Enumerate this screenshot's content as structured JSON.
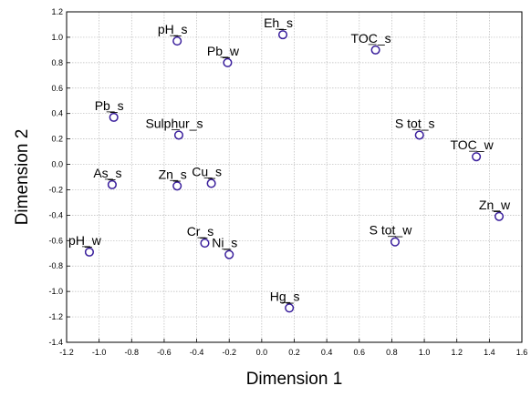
{
  "chart_data": {
    "type": "scatter",
    "xlabel": "Dimension 1",
    "ylabel": "Dimension 2",
    "xlim": [
      -1.2,
      1.6
    ],
    "ylim": [
      -1.4,
      1.2
    ],
    "xticks": [
      "-1.2",
      "-1.0",
      "-0.8",
      "-0.6",
      "-0.4",
      "-0.2",
      "0.0",
      "0.2",
      "0.4",
      "0.6",
      "0.8",
      "1.0",
      "1.2",
      "1.4",
      "1.6"
    ],
    "yticks": [
      "-1.4",
      "-1.2",
      "-1.0",
      "-0.8",
      "-0.6",
      "-0.4",
      "-0.2",
      "0.0",
      "0.2",
      "0.4",
      "0.6",
      "0.8",
      "1.0",
      "1.2"
    ],
    "grid": true,
    "marker_color": "#3a1f9c",
    "points": [
      {
        "label": "pH_s",
        "x": -0.52,
        "y": 0.97
      },
      {
        "label": "Eh_s",
        "x": 0.13,
        "y": 1.02
      },
      {
        "label": "TOC_s",
        "x": 0.7,
        "y": 0.9
      },
      {
        "label": "Pb_w",
        "x": -0.21,
        "y": 0.8
      },
      {
        "label": "Pb_s",
        "x": -0.91,
        "y": 0.37
      },
      {
        "label": "Sulphur_s",
        "x": -0.51,
        "y": 0.23
      },
      {
        "label": "S tot_s",
        "x": 0.97,
        "y": 0.23
      },
      {
        "label": "TOC_w",
        "x": 1.32,
        "y": 0.06
      },
      {
        "label": "As_s",
        "x": -0.92,
        "y": -0.16
      },
      {
        "label": "Zn_s",
        "x": -0.52,
        "y": -0.17
      },
      {
        "label": "Cu_s",
        "x": -0.31,
        "y": -0.15
      },
      {
        "label": "Zn_w",
        "x": 1.46,
        "y": -0.41
      },
      {
        "label": "Cr_s",
        "x": -0.35,
        "y": -0.62
      },
      {
        "label": "Ni_s",
        "x": -0.2,
        "y": -0.71
      },
      {
        "label": "S tot_w",
        "x": 0.82,
        "y": -0.61
      },
      {
        "label": "pH_w",
        "x": -1.06,
        "y": -0.69
      },
      {
        "label": "Hg_s",
        "x": 0.17,
        "y": -1.13
      }
    ]
  }
}
